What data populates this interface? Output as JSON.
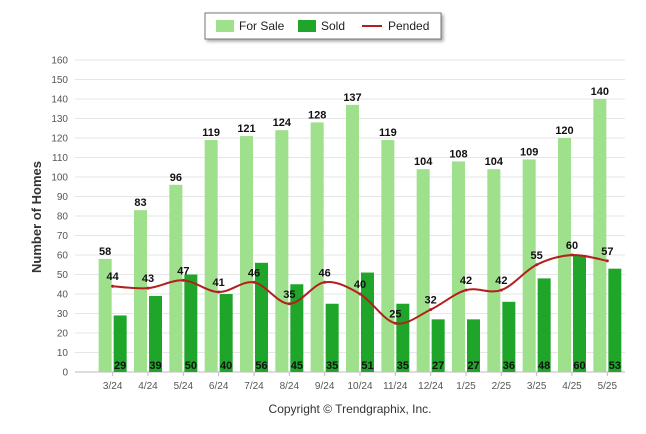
{
  "chart_data": {
    "type": "bar",
    "ylabel": "Number of Homes",
    "ylim": [
      0,
      160
    ],
    "yticks": [
      0,
      10,
      20,
      30,
      40,
      50,
      60,
      70,
      80,
      90,
      100,
      110,
      120,
      130,
      140,
      150,
      160
    ],
    "categories": [
      "3/24",
      "4/24",
      "5/24",
      "6/24",
      "7/24",
      "8/24",
      "9/24",
      "10/24",
      "11/24",
      "12/24",
      "1/25",
      "2/25",
      "3/25",
      "4/25",
      "5/25"
    ],
    "series": [
      {
        "name": "For Sale",
        "type": "bar",
        "color": "#9ee08c",
        "values": [
          58,
          83,
          96,
          119,
          121,
          124,
          128,
          137,
          119,
          104,
          108,
          104,
          109,
          120,
          140
        ]
      },
      {
        "name": "Sold",
        "type": "bar",
        "color": "#1ea52a",
        "values": [
          29,
          39,
          50,
          40,
          56,
          45,
          35,
          51,
          35,
          27,
          27,
          36,
          48,
          60,
          53
        ]
      },
      {
        "name": "Pended",
        "type": "line",
        "color": "#b41e1e",
        "values": [
          44,
          43,
          47,
          41,
          46,
          35,
          46,
          40,
          25,
          32,
          42,
          42,
          55,
          60,
          57
        ]
      }
    ],
    "legend": "top-center",
    "grid": true
  },
  "copyright": "Copyright © Trendgraphix, Inc."
}
